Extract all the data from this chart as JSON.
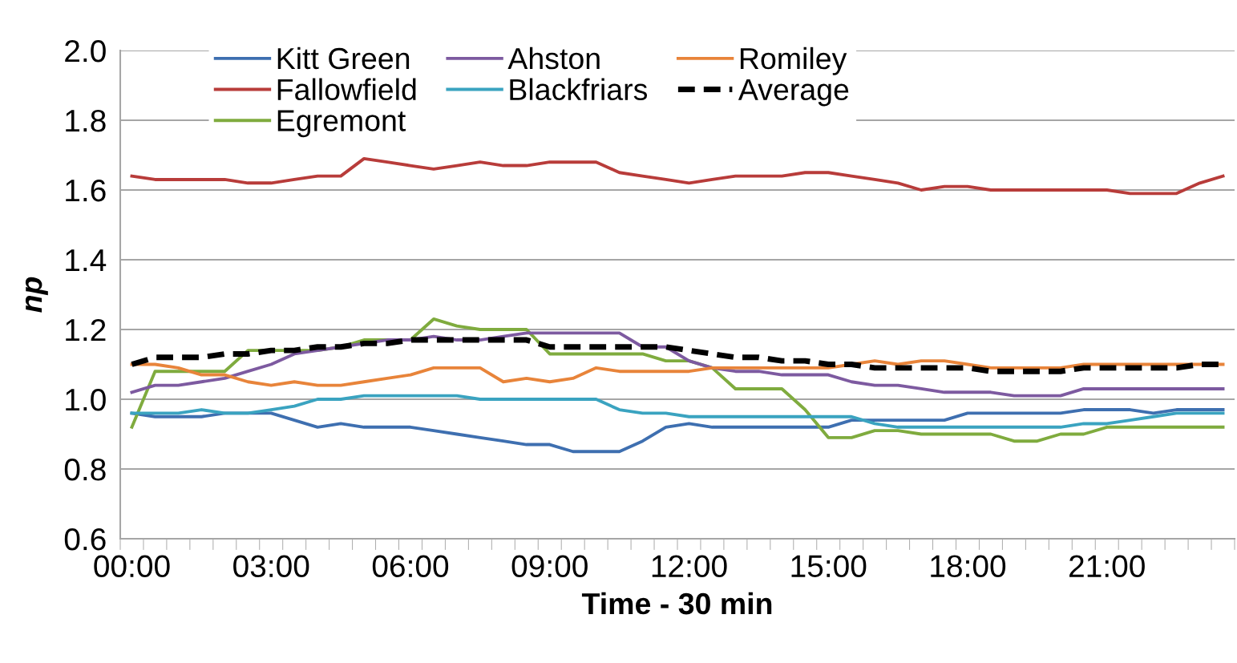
{
  "chart_data": {
    "type": "line",
    "xlabel": "Time - 30 min",
    "ylabel": "np",
    "categories": [
      "00:00",
      null,
      null,
      null,
      null,
      null,
      "03:00",
      null,
      null,
      null,
      null,
      null,
      "06:00",
      null,
      null,
      null,
      null,
      null,
      "09:00",
      null,
      null,
      null,
      null,
      null,
      "12:00",
      null,
      null,
      null,
      null,
      null,
      "15:00",
      null,
      null,
      null,
      null,
      null,
      "18:00",
      null,
      null,
      null,
      null,
      null,
      "21:00",
      null,
      null,
      null,
      null,
      null
    ],
    "ylim": [
      0.6,
      2.0
    ],
    "yticks": [
      {
        "value": 0.6,
        "label": "0.6"
      },
      {
        "value": 0.8,
        "label": "0.8"
      },
      {
        "value": 1.0,
        "label": "1.0"
      },
      {
        "value": 1.2,
        "label": "1.2"
      },
      {
        "value": 1.4,
        "label": "1.4"
      },
      {
        "value": 1.6,
        "label": "1.6"
      },
      {
        "value": 1.8,
        "label": "1.8"
      },
      {
        "value": 2.0,
        "label": "2.0"
      }
    ],
    "grid": "y",
    "legend": "top",
    "marker": "none",
    "series": [
      {
        "name": "Kitt Green",
        "color": "#3e6fb0",
        "values": [
          0.96,
          0.95,
          0.95,
          0.95,
          0.96,
          0.96,
          0.96,
          0.94,
          0.92,
          0.93,
          0.92,
          0.92,
          0.92,
          0.91,
          0.9,
          0.89,
          0.88,
          0.87,
          0.87,
          0.85,
          0.85,
          0.85,
          0.88,
          0.92,
          0.93,
          0.92,
          0.92,
          0.92,
          0.92,
          0.92,
          0.92,
          0.94,
          0.94,
          0.94,
          0.94,
          0.94,
          0.96,
          0.96,
          0.96,
          0.96,
          0.96,
          0.97,
          0.97,
          0.97,
          0.96,
          0.97,
          0.97,
          0.97
        ]
      },
      {
        "name": "Fallowfield",
        "color": "#b83c3a",
        "values": [
          1.64,
          1.63,
          1.63,
          1.63,
          1.63,
          1.62,
          1.62,
          1.63,
          1.64,
          1.64,
          1.69,
          1.68,
          1.67,
          1.66,
          1.67,
          1.68,
          1.67,
          1.67,
          1.68,
          1.68,
          1.68,
          1.65,
          1.64,
          1.63,
          1.62,
          1.63,
          1.64,
          1.64,
          1.64,
          1.65,
          1.65,
          1.64,
          1.63,
          1.62,
          1.6,
          1.61,
          1.61,
          1.6,
          1.6,
          1.6,
          1.6,
          1.6,
          1.6,
          1.59,
          1.59,
          1.59,
          1.62,
          1.64
        ]
      },
      {
        "name": "Egremont",
        "color": "#7fab3e",
        "values": [
          0.92,
          1.08,
          1.08,
          1.08,
          1.08,
          1.14,
          1.14,
          1.14,
          1.14,
          1.15,
          1.17,
          1.17,
          1.17,
          1.23,
          1.21,
          1.2,
          1.2,
          1.2,
          1.13,
          1.13,
          1.13,
          1.13,
          1.13,
          1.11,
          1.11,
          1.09,
          1.03,
          1.03,
          1.03,
          0.97,
          0.89,
          0.89,
          0.91,
          0.91,
          0.9,
          0.9,
          0.9,
          0.9,
          0.88,
          0.88,
          0.9,
          0.9,
          0.92,
          0.92,
          0.92,
          0.92,
          0.92,
          0.92
        ]
      },
      {
        "name": "Ahston",
        "color": "#7d5aa0",
        "values": [
          1.02,
          1.04,
          1.04,
          1.05,
          1.06,
          1.08,
          1.1,
          1.13,
          1.14,
          1.15,
          1.16,
          1.17,
          1.17,
          1.18,
          1.17,
          1.17,
          1.18,
          1.19,
          1.19,
          1.19,
          1.19,
          1.19,
          1.15,
          1.15,
          1.11,
          1.09,
          1.08,
          1.08,
          1.07,
          1.07,
          1.07,
          1.05,
          1.04,
          1.04,
          1.03,
          1.02,
          1.02,
          1.02,
          1.01,
          1.01,
          1.01,
          1.03,
          1.03,
          1.03,
          1.03,
          1.03,
          1.03,
          1.03
        ]
      },
      {
        "name": "Blackfriars",
        "color": "#3aa3c0",
        "values": [
          0.96,
          0.96,
          0.96,
          0.97,
          0.96,
          0.96,
          0.97,
          0.98,
          1.0,
          1.0,
          1.01,
          1.01,
          1.01,
          1.01,
          1.01,
          1.0,
          1.0,
          1.0,
          1.0,
          1.0,
          1.0,
          0.97,
          0.96,
          0.96,
          0.95,
          0.95,
          0.95,
          0.95,
          0.95,
          0.95,
          0.95,
          0.95,
          0.93,
          0.92,
          0.92,
          0.92,
          0.92,
          0.92,
          0.92,
          0.92,
          0.92,
          0.93,
          0.93,
          0.94,
          0.95,
          0.96,
          0.96,
          0.96
        ]
      },
      {
        "name": "Romiley",
        "color": "#e8843a",
        "values": [
          1.1,
          1.1,
          1.09,
          1.07,
          1.07,
          1.05,
          1.04,
          1.05,
          1.04,
          1.04,
          1.05,
          1.06,
          1.07,
          1.09,
          1.09,
          1.09,
          1.05,
          1.06,
          1.05,
          1.06,
          1.09,
          1.08,
          1.08,
          1.08,
          1.08,
          1.09,
          1.09,
          1.09,
          1.09,
          1.09,
          1.09,
          1.1,
          1.11,
          1.1,
          1.11,
          1.11,
          1.1,
          1.09,
          1.09,
          1.09,
          1.09,
          1.1,
          1.1,
          1.1,
          1.1,
          1.1,
          1.1,
          1.1
        ]
      },
      {
        "name": "Average",
        "color": "#000000",
        "line_style": "dashed",
        "values": [
          1.1,
          1.12,
          1.12,
          1.12,
          1.13,
          1.13,
          1.14,
          1.14,
          1.15,
          1.15,
          1.16,
          1.16,
          1.17,
          1.17,
          1.17,
          1.17,
          1.17,
          1.17,
          1.15,
          1.15,
          1.15,
          1.15,
          1.15,
          1.15,
          1.14,
          1.13,
          1.12,
          1.12,
          1.11,
          1.11,
          1.1,
          1.1,
          1.09,
          1.09,
          1.09,
          1.09,
          1.09,
          1.08,
          1.08,
          1.08,
          1.08,
          1.09,
          1.09,
          1.09,
          1.09,
          1.09,
          1.1,
          1.1
        ]
      }
    ]
  }
}
